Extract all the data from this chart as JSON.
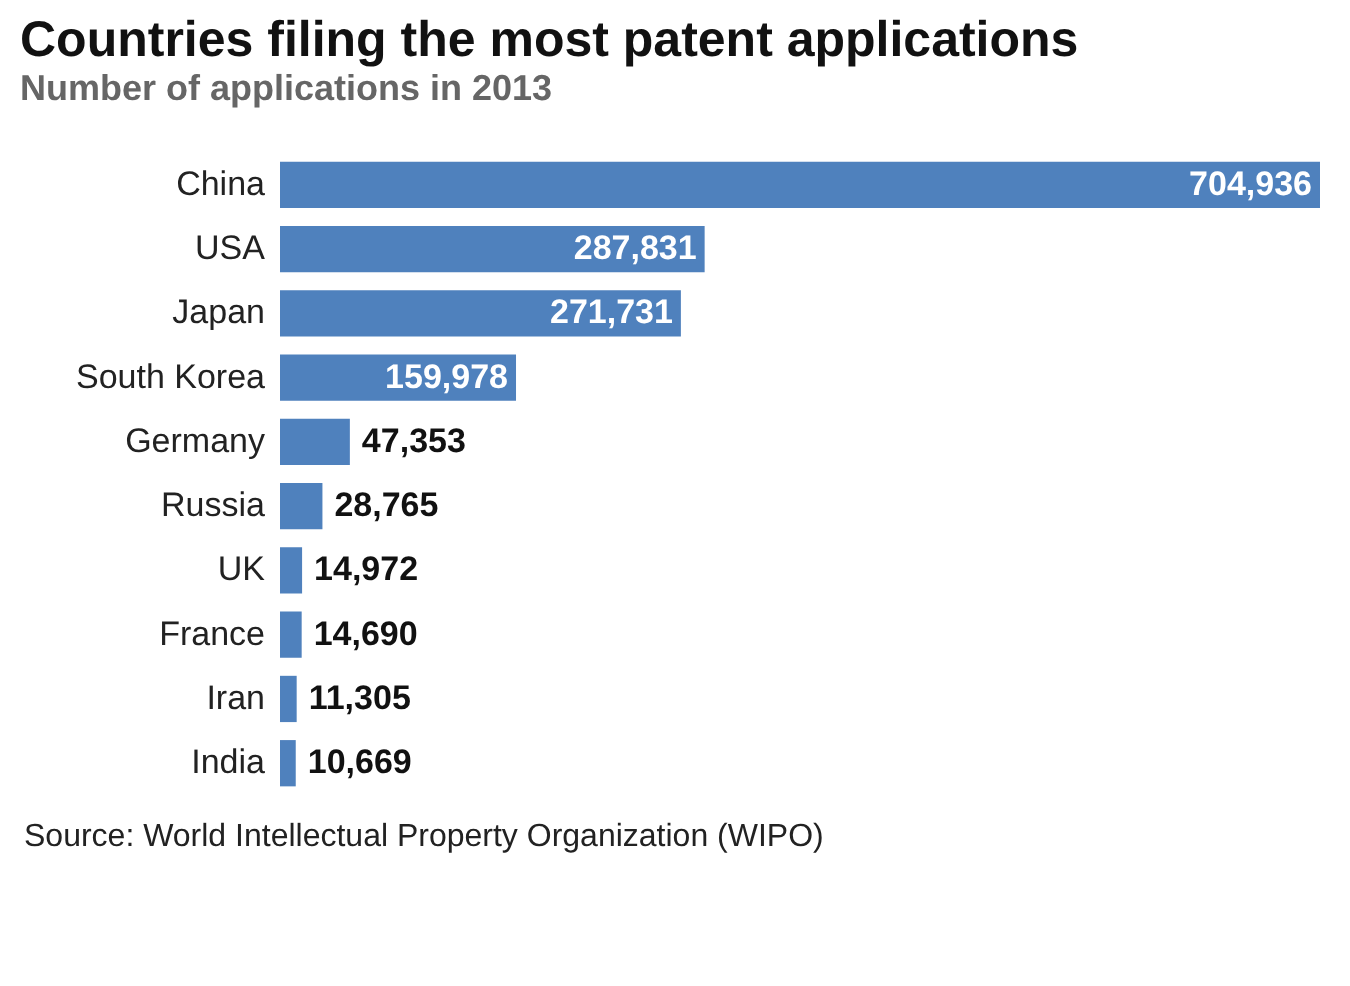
{
  "chart_data": {
    "type": "bar",
    "orientation": "horizontal",
    "title": "Countries filing the most patent applications",
    "subtitle": "Number of applications in 2013",
    "categories": [
      "China",
      "USA",
      "Japan",
      "South Korea",
      "Germany",
      "Russia",
      "UK",
      "France",
      "Iran",
      "India"
    ],
    "values": [
      704936,
      287831,
      271731,
      159978,
      47353,
      28765,
      14972,
      14690,
      11305,
      10669
    ],
    "value_labels": [
      "704,936",
      "287,831",
      "271,731",
      "159,978",
      "47,353",
      "28,765",
      "14,972",
      "14,690",
      "11,305",
      "10,669"
    ],
    "color": "#4f81bd",
    "grid": false,
    "annotations": [
      "Source: World Intellectual Property Organization (WIPO)"
    ]
  }
}
